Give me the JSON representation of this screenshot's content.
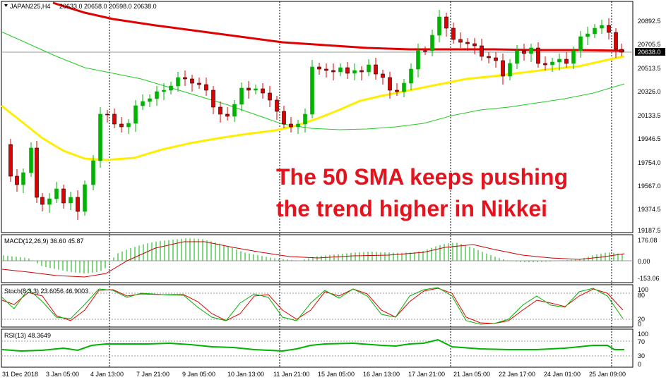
{
  "main": {
    "symbol_label": "JAPAN225,H4",
    "ohlc_text": "20633.0 20658.0 20598.0 20638.0",
    "price_levels": [
      "20892.5",
      "20705.5",
      "20513.5",
      "20326.0",
      "20133.5",
      "19946.5",
      "19754.0",
      "19567.0",
      "19374.5",
      "19187.5"
    ],
    "current_price": "20638.0",
    "annotation_line1": "The 50 SMA keeps pushing",
    "annotation_line2": "the trend higher in Nikkei"
  },
  "macd": {
    "label": "MACD(12,26,9) 36.60 45.87",
    "levels": [
      "176.08",
      "0.00",
      "-153.06"
    ]
  },
  "stoch": {
    "label": "Stoch(8,3,3) 23.6056 46.9003",
    "levels": [
      "100",
      "80",
      "20",
      "0"
    ]
  },
  "rsi": {
    "label": "RSI(13) 48.3649",
    "levels": [
      "100",
      "70",
      "30",
      "0"
    ]
  },
  "time_axis": [
    "31 Dec 2018",
    "3 Jan 05:00",
    "4 Jan 13:00",
    "7 Jan 21:00",
    "9 Jan 05:00",
    "10 Jan 13:00",
    "11 Jan 21:00",
    "15 Jan 05:00",
    "16 Jan 13:00",
    "17 Jan 21:00",
    "21 Jan 05:00",
    "22 Jan 17:00",
    "24 Jan 01:00",
    "25 Jan 09:00"
  ],
  "colors": {
    "bull": "#00b300",
    "bear": "#e00000",
    "sma200": "#e00000",
    "sma50": "#ffee00",
    "sma100": "#22cc22",
    "annotation": "#e3141e",
    "macd_hist": "#00b300",
    "macd_signal": "#cc0000",
    "stoch_main": "#00b300",
    "stoch_signal": "#e00000",
    "rsi": "#00b300"
  }
}
